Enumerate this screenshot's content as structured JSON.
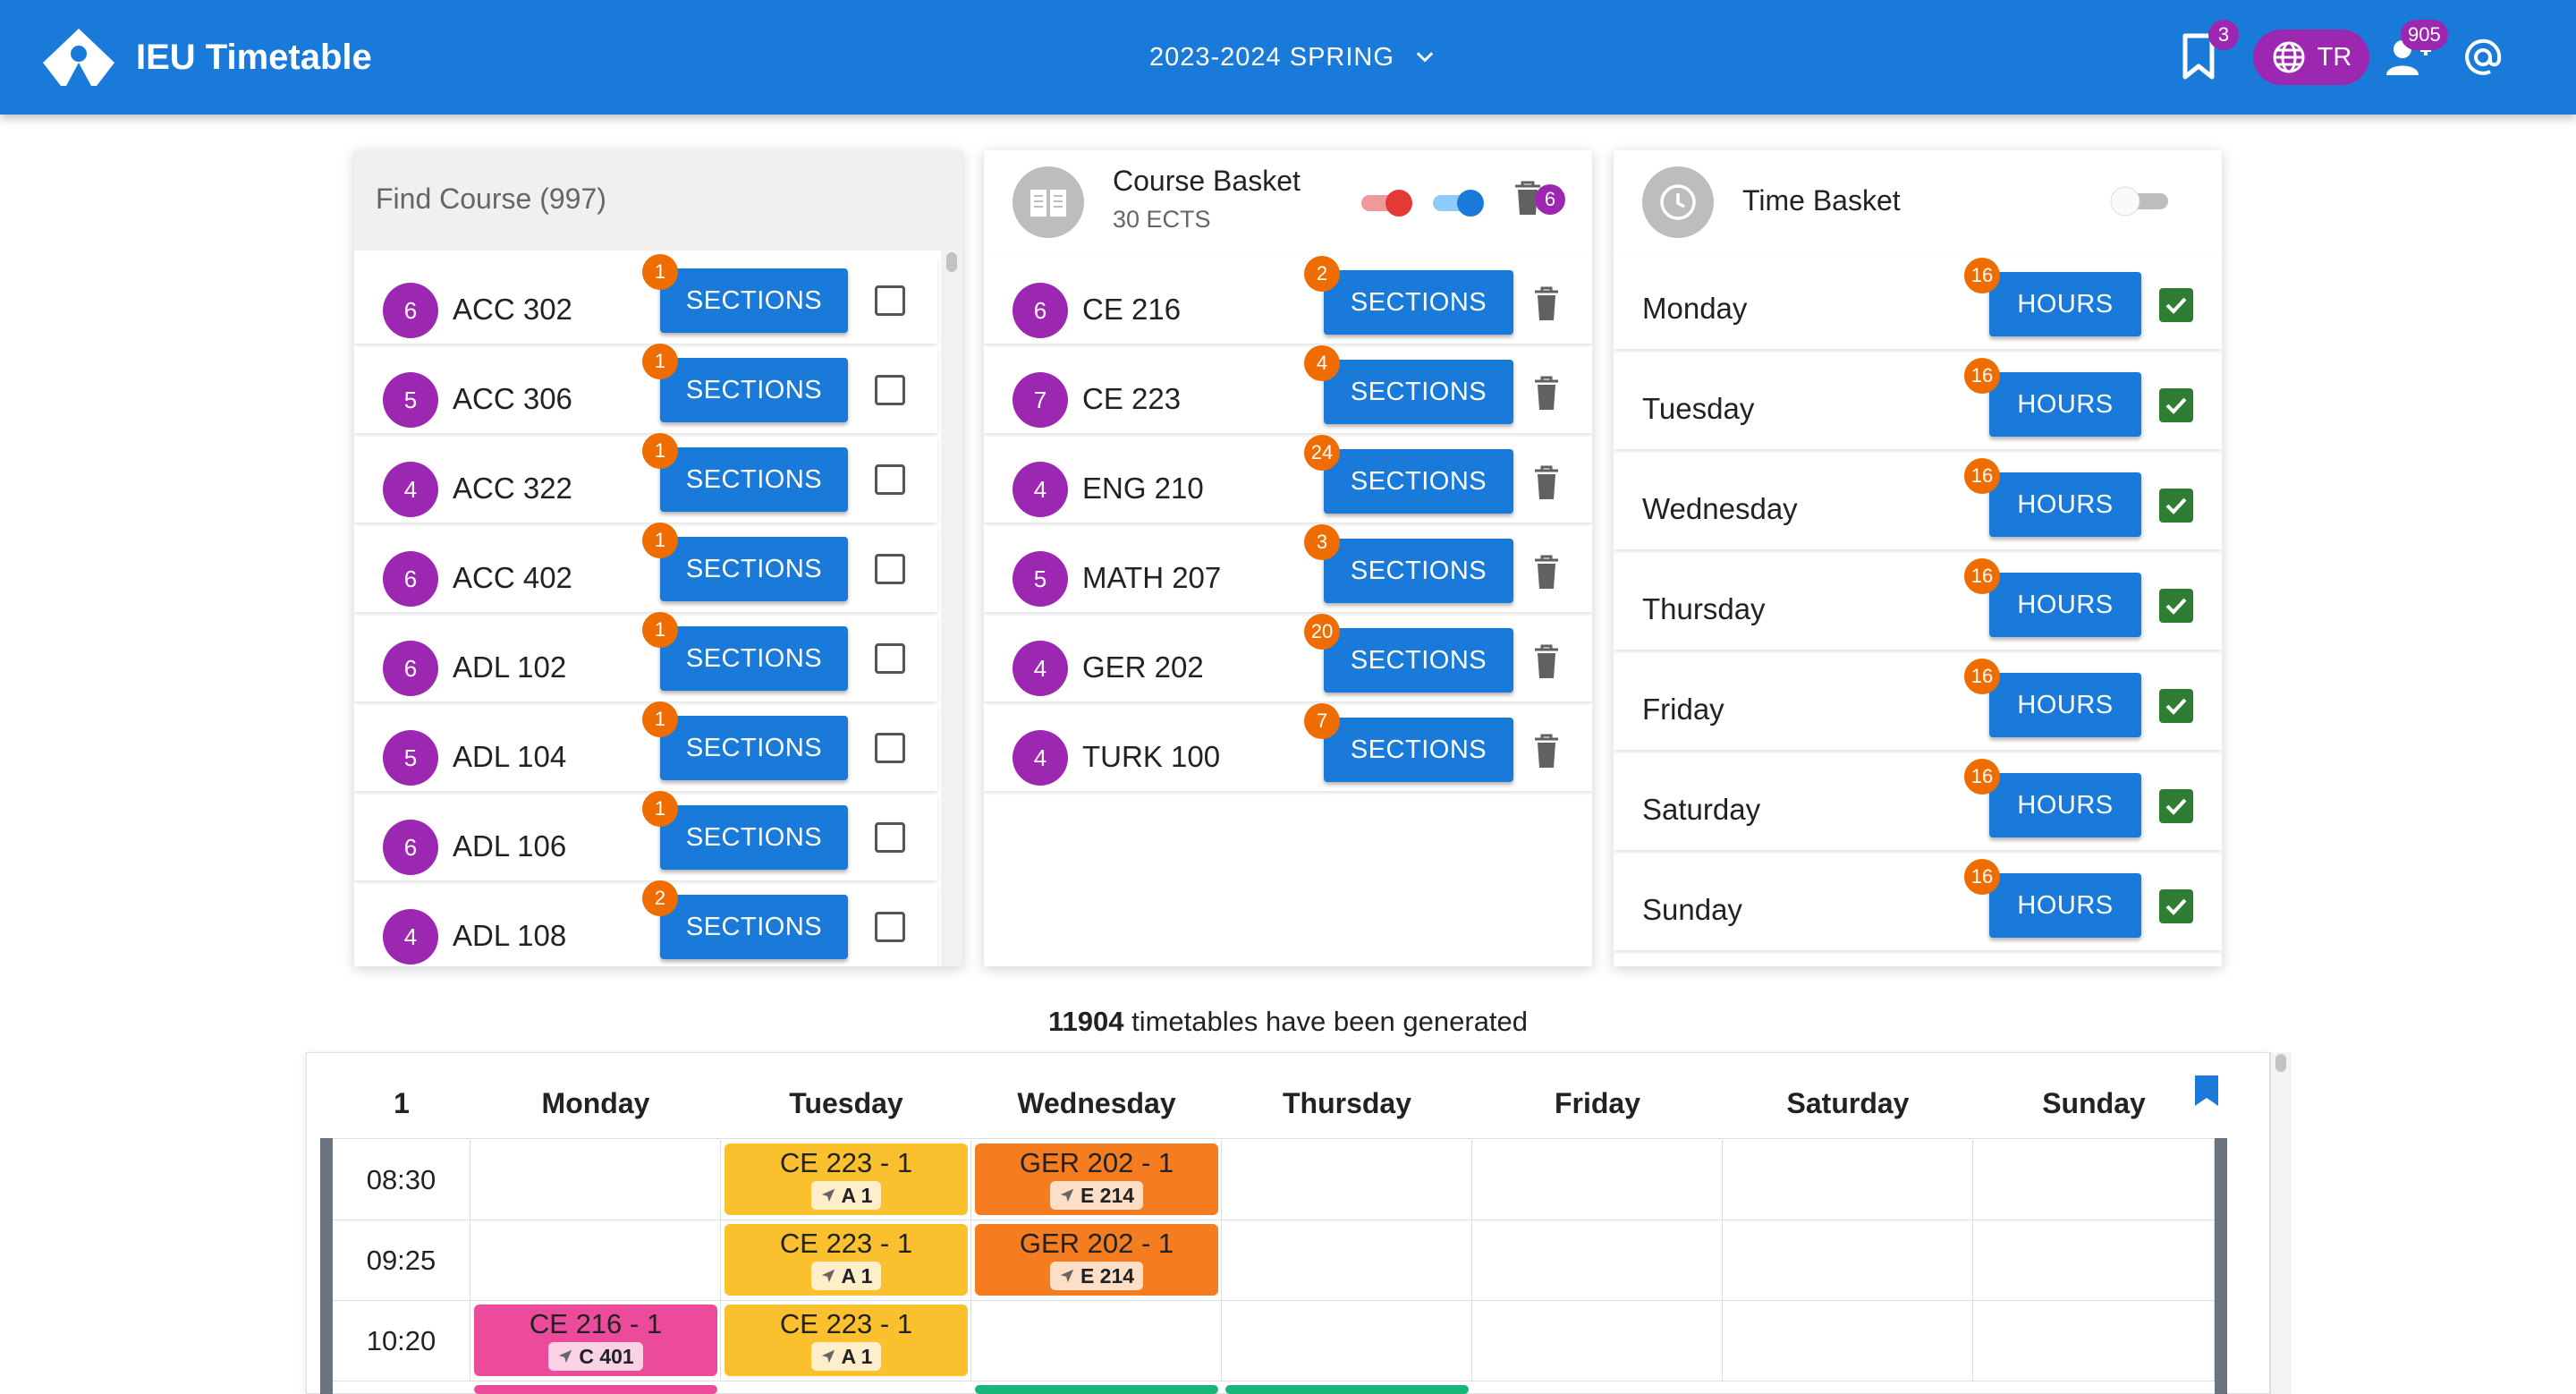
{
  "header": {
    "title": "IEU Timetable",
    "semester": "2023-2024 SPRING",
    "bookmark_count": "3",
    "lang_label": "TR",
    "users_count": "905",
    "icons": [
      "logo-icon",
      "chevron-down-icon",
      "bookmark-icon",
      "globe-icon",
      "users-icon",
      "at-icon"
    ]
  },
  "find_course": {
    "placeholder": "Find Course (997)",
    "courses": [
      {
        "ects": "6",
        "code": "ACC 302",
        "sections_label": "SECTIONS",
        "section_count": "1"
      },
      {
        "ects": "5",
        "code": "ACC 306",
        "sections_label": "SECTIONS",
        "section_count": "1"
      },
      {
        "ects": "4",
        "code": "ACC 322",
        "sections_label": "SECTIONS",
        "section_count": "1"
      },
      {
        "ects": "6",
        "code": "ACC 402",
        "sections_label": "SECTIONS",
        "section_count": "1"
      },
      {
        "ects": "6",
        "code": "ADL 102",
        "sections_label": "SECTIONS",
        "section_count": "1"
      },
      {
        "ects": "5",
        "code": "ADL 104",
        "sections_label": "SECTIONS",
        "section_count": "1"
      },
      {
        "ects": "6",
        "code": "ADL 106",
        "sections_label": "SECTIONS",
        "section_count": "1"
      },
      {
        "ects": "4",
        "code": "ADL 108",
        "sections_label": "SECTIONS",
        "section_count": "2"
      }
    ]
  },
  "course_basket": {
    "title": "Course Basket",
    "subtitle": "30 ECTS",
    "trash_count": "6",
    "courses": [
      {
        "ects": "6",
        "code": "CE 216",
        "sections_label": "SECTIONS",
        "section_count": "2"
      },
      {
        "ects": "7",
        "code": "CE 223",
        "sections_label": "SECTIONS",
        "section_count": "4"
      },
      {
        "ects": "4",
        "code": "ENG 210",
        "sections_label": "SECTIONS",
        "section_count": "24"
      },
      {
        "ects": "5",
        "code": "MATH 207",
        "sections_label": "SECTIONS",
        "section_count": "3"
      },
      {
        "ects": "4",
        "code": "GER 202",
        "sections_label": "SECTIONS",
        "section_count": "20"
      },
      {
        "ects": "4",
        "code": "TURK 100",
        "sections_label": "SECTIONS",
        "section_count": "7"
      }
    ],
    "colors": {
      "toggle_red": "#e53935",
      "toggle_blue": "#1a7ad9"
    }
  },
  "time_basket": {
    "title": "Time Basket",
    "toggle_on": false,
    "days": [
      {
        "name": "Monday",
        "hours_label": "HOURS",
        "count": "16",
        "checked": true
      },
      {
        "name": "Tuesday",
        "hours_label": "HOURS",
        "count": "16",
        "checked": true
      },
      {
        "name": "Wednesday",
        "hours_label": "HOURS",
        "count": "16",
        "checked": true
      },
      {
        "name": "Thursday",
        "hours_label": "HOURS",
        "count": "16",
        "checked": true
      },
      {
        "name": "Friday",
        "hours_label": "HOURS",
        "count": "16",
        "checked": true
      },
      {
        "name": "Saturday",
        "hours_label": "HOURS",
        "count": "16",
        "checked": true
      },
      {
        "name": "Sunday",
        "hours_label": "HOURS",
        "count": "16",
        "checked": true
      }
    ]
  },
  "summary": {
    "count": "11904",
    "text": "timetables have been generated"
  },
  "timetable": {
    "index": "1",
    "days": [
      "Monday",
      "Tuesday",
      "Wednesday",
      "Thursday",
      "Friday",
      "Saturday",
      "Sunday"
    ],
    "times": [
      "08:30",
      "09:25",
      "10:20"
    ],
    "blocks": [
      {
        "title": "CE 223 - 1",
        "room": "A 1",
        "color": "#fbc02d"
      },
      {
        "title": "GER 202 - 1",
        "room": "E 214",
        "color": "#f57c1f"
      },
      {
        "title": "CE 223 - 1",
        "room": "A 1",
        "color": "#fbc02d"
      },
      {
        "title": "GER 202 - 1",
        "room": "E 214",
        "color": "#f57c1f"
      },
      {
        "title": "CE 216 - 1",
        "room": "C 401",
        "color": "#ec4b9b"
      },
      {
        "title": "CE 223 - 1",
        "room": "A 1",
        "color": "#fbc02d"
      }
    ]
  },
  "colors": {
    "primary": "#1a7ad9",
    "ects_badge": "#9c27b0",
    "count_badge": "#ef6c00",
    "checked": "#2e7d32"
  }
}
